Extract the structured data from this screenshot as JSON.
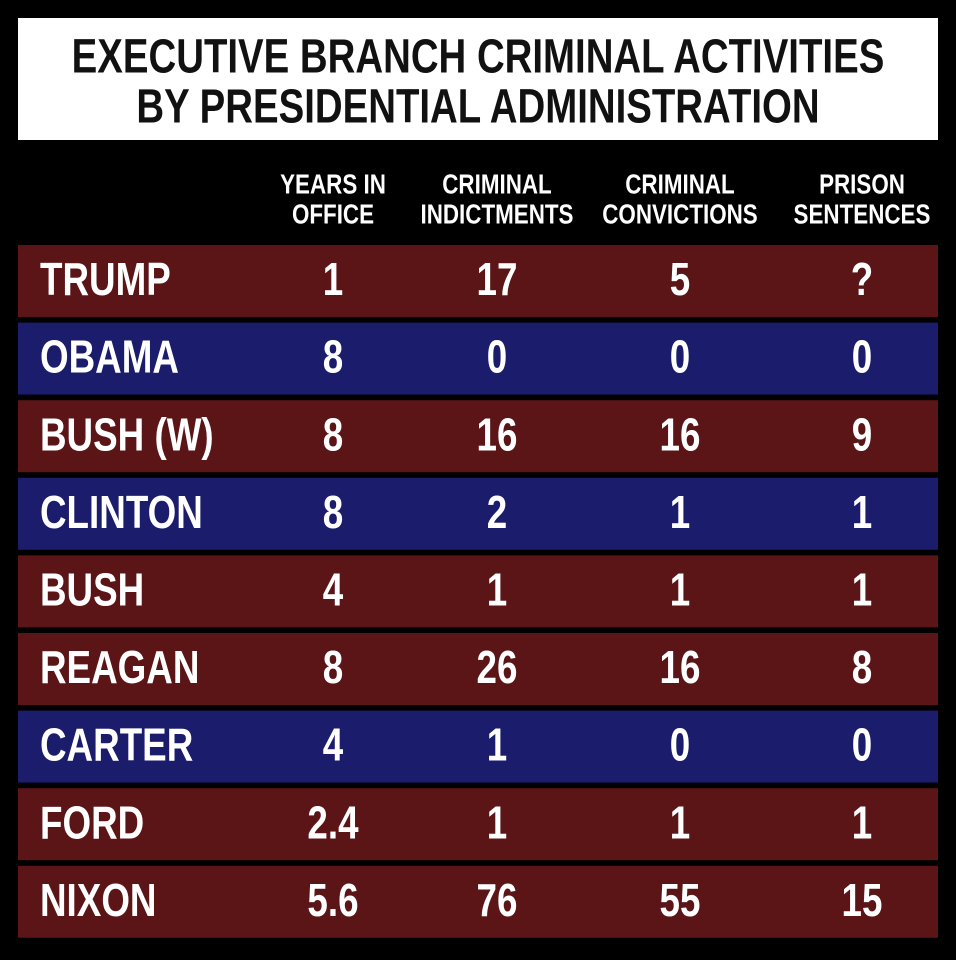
{
  "title": [
    "EXECUTIVE BRANCH CRIMINAL ACTIVITIES",
    "BY PRESIDENTIAL ADMINISTRATION"
  ],
  "table": {
    "columns": [
      [
        "YEARS IN",
        "OFFICE"
      ],
      [
        "CRIMINAL",
        "INDICTMENTS"
      ],
      [
        "CRIMINAL",
        "CONVICTIONS"
      ],
      [
        "PRISON",
        "SENTENCES"
      ]
    ],
    "rows": [
      {
        "name": "TRUMP",
        "color": "#5b1517",
        "cells": [
          1,
          17,
          5,
          "?"
        ]
      },
      {
        "name": "OBAMA",
        "color": "#1b1c6b",
        "cells": [
          8,
          0,
          0,
          0
        ]
      },
      {
        "name": "BUSH (W)",
        "color": "#5b1517",
        "cells": [
          8,
          16,
          16,
          9
        ]
      },
      {
        "name": "CLINTON",
        "color": "#1b1c6b",
        "cells": [
          8,
          2,
          1,
          1
        ]
      },
      {
        "name": "BUSH",
        "color": "#5b1517",
        "cells": [
          4,
          1,
          1,
          1
        ]
      },
      {
        "name": "REAGAN",
        "color": "#5b1517",
        "cells": [
          8,
          26,
          16,
          8
        ]
      },
      {
        "name": "CARTER",
        "color": "#1b1c6b",
        "cells": [
          4,
          1,
          0,
          0
        ]
      },
      {
        "name": "FORD",
        "color": "#5b1517",
        "cells": [
          2.4,
          1,
          1,
          1
        ]
      },
      {
        "name": "NIXON",
        "color": "#5b1517",
        "cells": [
          5.6,
          76,
          55,
          15
        ]
      }
    ]
  }
}
